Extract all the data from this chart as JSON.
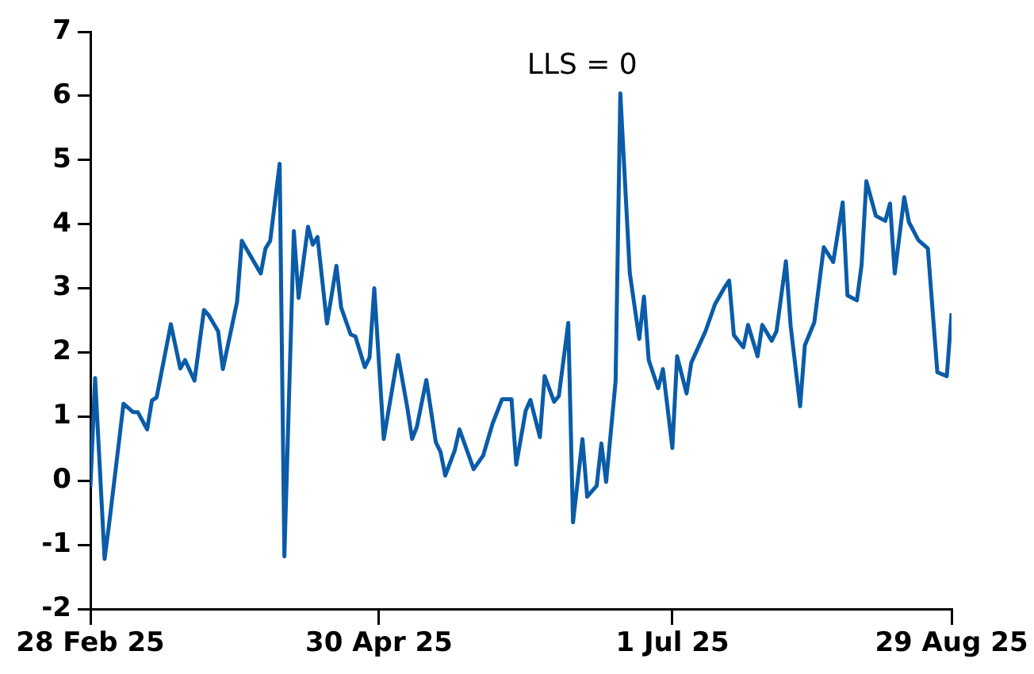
{
  "chart_data": {
    "type": "line",
    "grid": false,
    "legend": false,
    "xlim": [
      "2025-02-28",
      "2025-08-29"
    ],
    "xticks": [
      {
        "value": "2025-02-28",
        "label": "28 Feb 25"
      },
      {
        "value": "2025-04-30",
        "label": "30 Apr 25"
      },
      {
        "value": "2025-07-01",
        "label": "1 Jul 25"
      },
      {
        "value": "2025-08-29",
        "label": "29 Aug 25"
      }
    ],
    "ylim": [
      -2,
      7
    ],
    "yticks": [
      -2,
      -1,
      0,
      1,
      2,
      3,
      4,
      5,
      6,
      7
    ],
    "annotations": [
      {
        "text": "LLS = 0",
        "x": "2025-06-20",
        "y": 6.04
      }
    ],
    "series": [
      {
        "color": "#0a5ca8",
        "x": [
          "2025-02-28",
          "2025-03-01",
          "2025-03-03",
          "2025-03-04",
          "2025-03-07",
          "2025-03-09",
          "2025-03-10",
          "2025-03-12",
          "2025-03-13",
          "2025-03-14",
          "2025-03-17",
          "2025-03-19",
          "2025-03-20",
          "2025-03-22",
          "2025-03-24",
          "2025-03-25",
          "2025-03-27",
          "2025-03-28",
          "2025-03-31",
          "2025-04-01",
          "2025-04-05",
          "2025-04-06",
          "2025-04-07",
          "2025-04-09",
          "2025-04-10",
          "2025-04-12",
          "2025-04-13",
          "2025-04-15",
          "2025-04-16",
          "2025-04-17",
          "2025-04-19",
          "2025-04-21",
          "2025-04-22",
          "2025-04-24",
          "2025-04-25",
          "2025-04-27",
          "2025-04-28",
          "2025-04-29",
          "2025-05-01",
          "2025-05-04",
          "2025-05-06",
          "2025-05-07",
          "2025-05-08",
          "2025-05-10",
          "2025-05-12",
          "2025-05-13",
          "2025-05-14",
          "2025-05-16",
          "2025-05-17",
          "2025-05-20",
          "2025-05-22",
          "2025-05-24",
          "2025-05-26",
          "2025-05-28",
          "2025-05-29",
          "2025-05-31",
          "2025-06-01",
          "2025-06-03",
          "2025-06-04",
          "2025-06-06",
          "2025-06-07",
          "2025-06-09",
          "2025-06-10",
          "2025-06-12",
          "2025-06-13",
          "2025-06-15",
          "2025-06-16",
          "2025-06-17",
          "2025-06-19",
          "2025-06-20",
          "2025-06-22",
          "2025-06-24",
          "2025-06-25",
          "2025-06-26",
          "2025-06-28",
          "2025-06-29",
          "2025-07-01",
          "2025-07-02",
          "2025-07-04",
          "2025-07-05",
          "2025-07-08",
          "2025-07-10",
          "2025-07-12",
          "2025-07-13",
          "2025-07-14",
          "2025-07-16",
          "2025-07-17",
          "2025-07-19",
          "2025-07-20",
          "2025-07-22",
          "2025-07-23",
          "2025-07-25",
          "2025-07-26",
          "2025-07-28",
          "2025-07-29",
          "2025-07-31",
          "2025-08-02",
          "2025-08-04",
          "2025-08-06",
          "2025-08-07",
          "2025-08-09",
          "2025-08-10",
          "2025-08-11",
          "2025-08-13",
          "2025-08-15",
          "2025-08-16",
          "2025-08-17",
          "2025-08-19",
          "2025-08-20",
          "2025-08-22",
          "2025-08-24",
          "2025-08-26",
          "2025-08-28",
          "2025-08-29"
        ],
        "values": [
          -0.1,
          1.6,
          -1.22,
          -0.65,
          1.2,
          1.07,
          1.07,
          0.8,
          1.25,
          1.3,
          2.44,
          1.75,
          1.88,
          1.56,
          2.66,
          2.58,
          2.33,
          1.74,
          2.79,
          3.74,
          3.23,
          3.62,
          3.74,
          4.94,
          -1.18,
          3.89,
          2.85,
          3.96,
          3.68,
          3.8,
          2.45,
          3.35,
          2.7,
          2.28,
          2.25,
          1.77,
          1.92,
          3.0,
          0.65,
          1.96,
          1.13,
          0.65,
          0.84,
          1.57,
          0.6,
          0.45,
          0.08,
          0.47,
          0.8,
          0.18,
          0.39,
          0.89,
          1.27,
          1.27,
          0.25,
          1.09,
          1.26,
          0.68,
          1.63,
          1.23,
          1.32,
          2.46,
          -0.65,
          0.65,
          -0.25,
          -0.08,
          0.58,
          -0.02,
          1.55,
          6.04,
          3.24,
          2.21,
          2.87,
          1.88,
          1.44,
          1.74,
          0.51,
          1.94,
          1.36,
          1.84,
          2.33,
          2.75,
          3.01,
          3.12,
          2.27,
          2.08,
          2.43,
          1.94,
          2.43,
          2.18,
          2.33,
          3.42,
          2.41,
          1.16,
          2.11,
          2.47,
          3.64,
          3.41,
          4.34,
          2.89,
          2.81,
          3.37,
          4.67,
          4.13,
          4.05,
          4.32,
          3.23,
          4.42,
          4.03,
          3.75,
          3.62,
          1.69,
          1.63,
          2.61
        ]
      }
    ]
  }
}
